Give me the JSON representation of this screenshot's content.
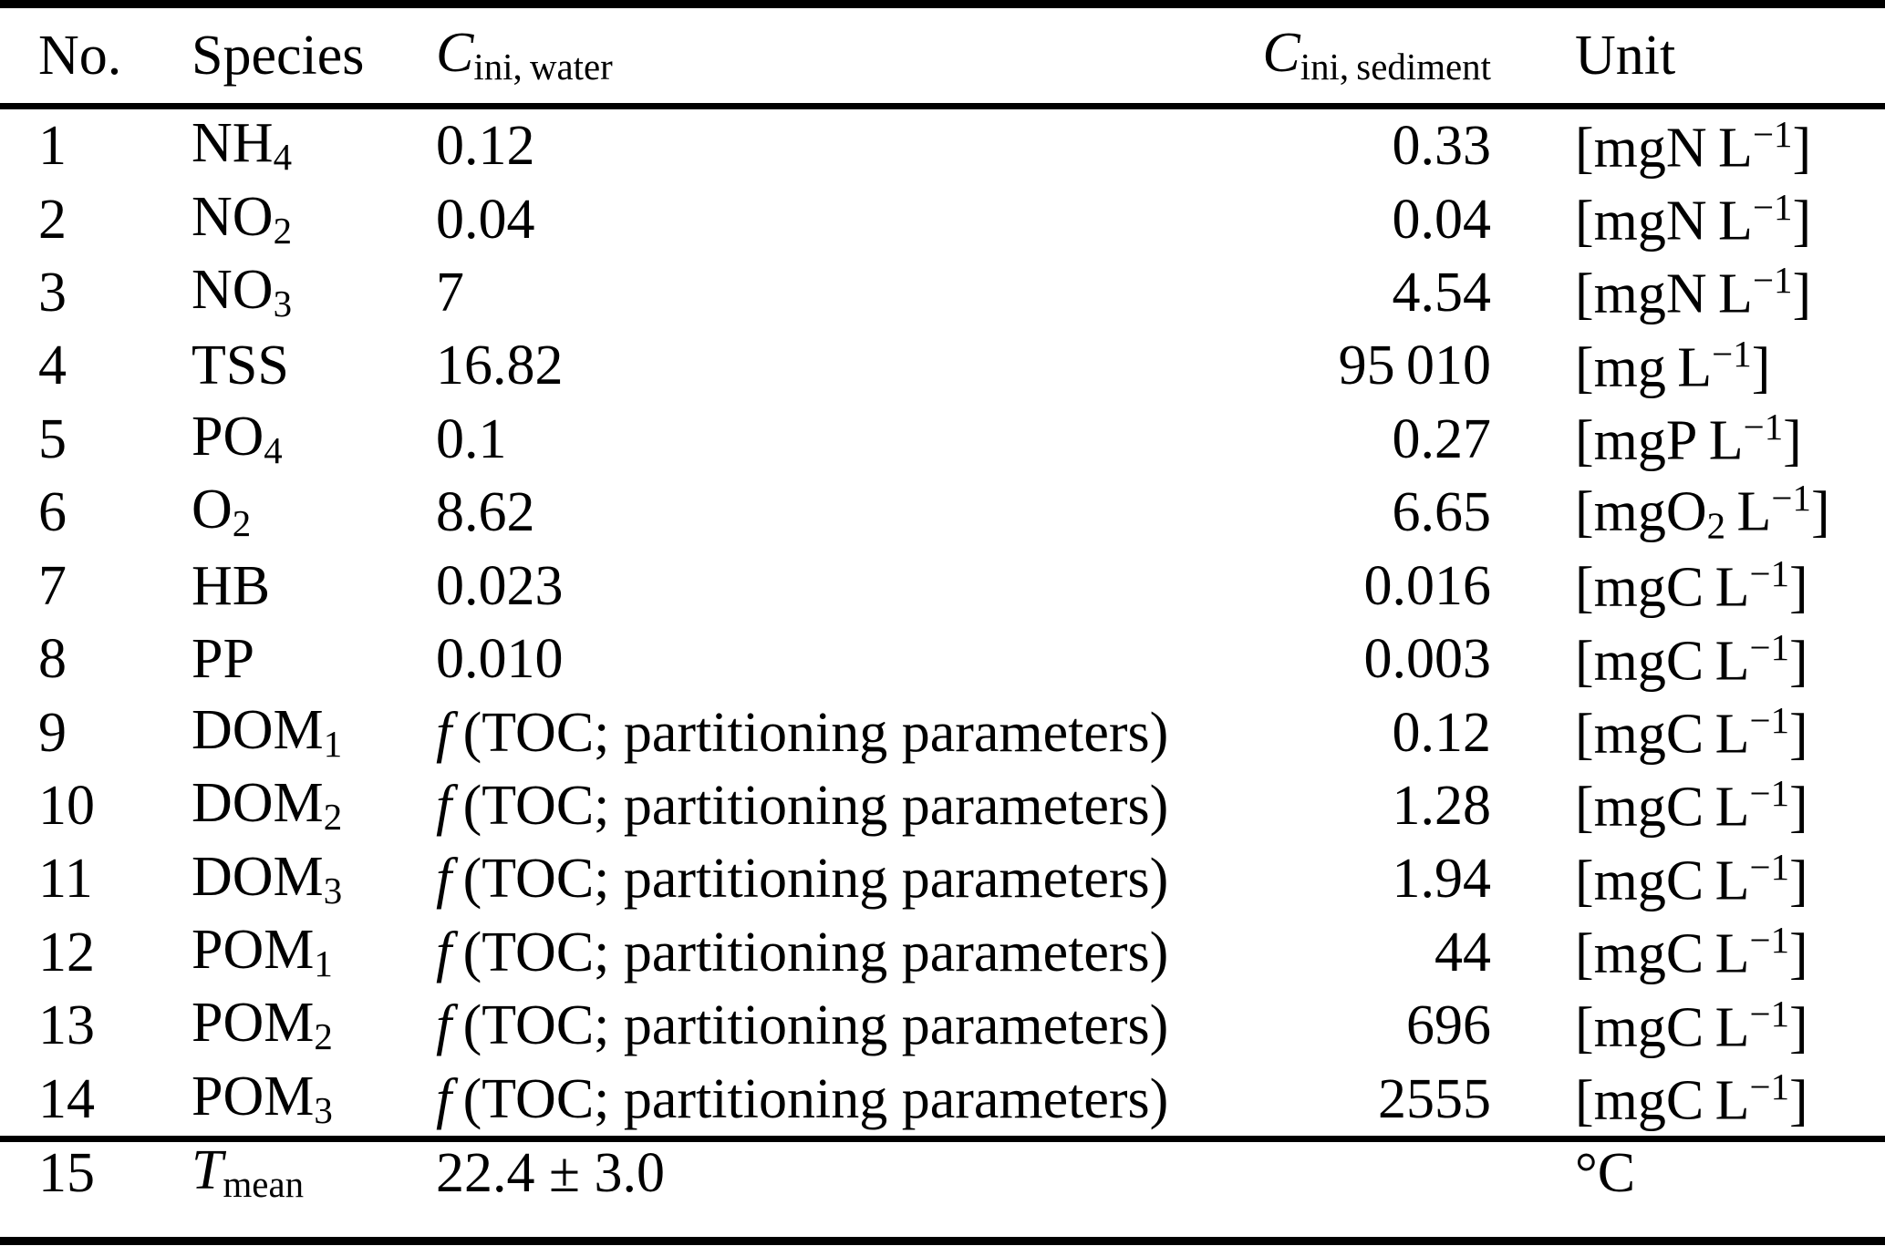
{
  "page": {
    "background": "#ffffff",
    "text_color": "#000000",
    "rule_color": "#000000"
  },
  "table": {
    "header": {
      "no": [
        {
          "t": "No."
        }
      ],
      "species": [
        {
          "t": "Species"
        }
      ],
      "c_ini_water": [
        {
          "t": "C",
          "s": "i"
        },
        {
          "t": "ini, water",
          "s": "sub"
        }
      ],
      "c_ini_sediment": [
        {
          "t": "C",
          "s": "i"
        },
        {
          "t": "ini, sediment",
          "s": "sub"
        }
      ],
      "unit": [
        {
          "t": "Unit"
        }
      ]
    },
    "rows": [
      {
        "no": [
          {
            "t": "1"
          }
        ],
        "species": [
          {
            "t": "NH"
          },
          {
            "t": "4",
            "s": "sub"
          }
        ],
        "water": [
          {
            "t": "0.12"
          }
        ],
        "sediment": [
          {
            "t": "0.33"
          }
        ],
        "unit": [
          {
            "t": "[mgN L"
          },
          {
            "t": "−1",
            "s": "sup"
          },
          {
            "t": "]"
          }
        ]
      },
      {
        "no": [
          {
            "t": "2"
          }
        ],
        "species": [
          {
            "t": "NO"
          },
          {
            "t": "2",
            "s": "sub"
          }
        ],
        "water": [
          {
            "t": "0.04"
          }
        ],
        "sediment": [
          {
            "t": "0.04"
          }
        ],
        "unit": [
          {
            "t": "[mgN L"
          },
          {
            "t": "−1",
            "s": "sup"
          },
          {
            "t": "]"
          }
        ]
      },
      {
        "no": [
          {
            "t": "3"
          }
        ],
        "species": [
          {
            "t": "NO"
          },
          {
            "t": "3",
            "s": "sub"
          }
        ],
        "water": [
          {
            "t": "7"
          }
        ],
        "sediment": [
          {
            "t": "4.54"
          }
        ],
        "unit": [
          {
            "t": "[mgN L"
          },
          {
            "t": "−1",
            "s": "sup"
          },
          {
            "t": "]"
          }
        ]
      },
      {
        "no": [
          {
            "t": "4"
          }
        ],
        "species": [
          {
            "t": "TSS"
          }
        ],
        "water": [
          {
            "t": "16.82"
          }
        ],
        "sediment": [
          {
            "t": "95 010"
          }
        ],
        "unit": [
          {
            "t": "[mg L"
          },
          {
            "t": "−1",
            "s": "sup"
          },
          {
            "t": "]"
          }
        ]
      },
      {
        "no": [
          {
            "t": "5"
          }
        ],
        "species": [
          {
            "t": "PO"
          },
          {
            "t": "4",
            "s": "sub"
          }
        ],
        "water": [
          {
            "t": "0.1"
          }
        ],
        "sediment": [
          {
            "t": "0.27"
          }
        ],
        "unit": [
          {
            "t": "[mgP L"
          },
          {
            "t": "−1",
            "s": "sup"
          },
          {
            "t": "]"
          }
        ]
      },
      {
        "no": [
          {
            "t": "6"
          }
        ],
        "species": [
          {
            "t": "O"
          },
          {
            "t": "2",
            "s": "sub"
          }
        ],
        "water": [
          {
            "t": "8.62"
          }
        ],
        "sediment": [
          {
            "t": "6.65"
          }
        ],
        "unit": [
          {
            "t": "[mgO"
          },
          {
            "t": "2",
            "s": "sub"
          },
          {
            "t": " L"
          },
          {
            "t": "−1",
            "s": "sup"
          },
          {
            "t": "]"
          }
        ]
      },
      {
        "no": [
          {
            "t": "7"
          }
        ],
        "species": [
          {
            "t": "HB"
          }
        ],
        "water": [
          {
            "t": "0.023"
          }
        ],
        "sediment": [
          {
            "t": "0.016"
          }
        ],
        "unit": [
          {
            "t": "[mgC L"
          },
          {
            "t": "−1",
            "s": "sup"
          },
          {
            "t": "]"
          }
        ]
      },
      {
        "no": [
          {
            "t": "8"
          }
        ],
        "species": [
          {
            "t": "PP"
          }
        ],
        "water": [
          {
            "t": "0.010"
          }
        ],
        "sediment": [
          {
            "t": "0.003"
          }
        ],
        "unit": [
          {
            "t": "[mgC L"
          },
          {
            "t": "−1",
            "s": "sup"
          },
          {
            "t": "]"
          }
        ]
      },
      {
        "no": [
          {
            "t": "9"
          }
        ],
        "species": [
          {
            "t": "DOM"
          },
          {
            "t": "1",
            "s": "sub"
          }
        ],
        "water": [
          {
            "t": "f",
            "s": "i"
          },
          {
            "t": " (TOC; partitioning parameters)"
          }
        ],
        "sediment": [
          {
            "t": "0.12"
          }
        ],
        "unit": [
          {
            "t": "[mgC L"
          },
          {
            "t": "−1",
            "s": "sup"
          },
          {
            "t": "]"
          }
        ]
      },
      {
        "no": [
          {
            "t": "10"
          }
        ],
        "species": [
          {
            "t": "DOM"
          },
          {
            "t": "2",
            "s": "sub"
          }
        ],
        "water": [
          {
            "t": "f",
            "s": "i"
          },
          {
            "t": " (TOC; partitioning parameters)"
          }
        ],
        "sediment": [
          {
            "t": "1.28"
          }
        ],
        "unit": [
          {
            "t": "[mgC L"
          },
          {
            "t": "−1",
            "s": "sup"
          },
          {
            "t": "]"
          }
        ]
      },
      {
        "no": [
          {
            "t": "11"
          }
        ],
        "species": [
          {
            "t": "DOM"
          },
          {
            "t": "3",
            "s": "sub"
          }
        ],
        "water": [
          {
            "t": "f",
            "s": "i"
          },
          {
            "t": " (TOC; partitioning parameters)"
          }
        ],
        "sediment": [
          {
            "t": "1.94"
          }
        ],
        "unit": [
          {
            "t": "[mgC L"
          },
          {
            "t": "−1",
            "s": "sup"
          },
          {
            "t": "]"
          }
        ]
      },
      {
        "no": [
          {
            "t": "12"
          }
        ],
        "species": [
          {
            "t": "POM"
          },
          {
            "t": "1",
            "s": "sub"
          }
        ],
        "water": [
          {
            "t": "f",
            "s": "i"
          },
          {
            "t": " (TOC; partitioning parameters)"
          }
        ],
        "sediment": [
          {
            "t": "44"
          }
        ],
        "unit": [
          {
            "t": "[mgC L"
          },
          {
            "t": "−1",
            "s": "sup"
          },
          {
            "t": "]"
          }
        ]
      },
      {
        "no": [
          {
            "t": "13"
          }
        ],
        "species": [
          {
            "t": "POM"
          },
          {
            "t": "2",
            "s": "sub"
          }
        ],
        "water": [
          {
            "t": "f",
            "s": "i"
          },
          {
            "t": " (TOC; partitioning parameters)"
          }
        ],
        "sediment": [
          {
            "t": "696"
          }
        ],
        "unit": [
          {
            "t": "[mgC L"
          },
          {
            "t": "−1",
            "s": "sup"
          },
          {
            "t": "]"
          }
        ]
      },
      {
        "no": [
          {
            "t": "14"
          }
        ],
        "species": [
          {
            "t": "POM"
          },
          {
            "t": "3",
            "s": "sub"
          }
        ],
        "water": [
          {
            "t": "f",
            "s": "i"
          },
          {
            "t": " (TOC; partitioning parameters)"
          }
        ],
        "sediment": [
          {
            "t": "2555"
          }
        ],
        "unit": [
          {
            "t": "[mgC L"
          },
          {
            "t": "−1",
            "s": "sup"
          },
          {
            "t": "]"
          }
        ]
      }
    ],
    "footer_row": {
      "no": [
        {
          "t": "15"
        }
      ],
      "species": [
        {
          "t": "T",
          "s": "i"
        },
        {
          "t": "mean",
          "s": "sub"
        }
      ],
      "water": [
        {
          "t": "22.4 ± 3.0"
        }
      ],
      "sediment": [],
      "unit": [
        {
          "t": "°C"
        }
      ]
    }
  }
}
